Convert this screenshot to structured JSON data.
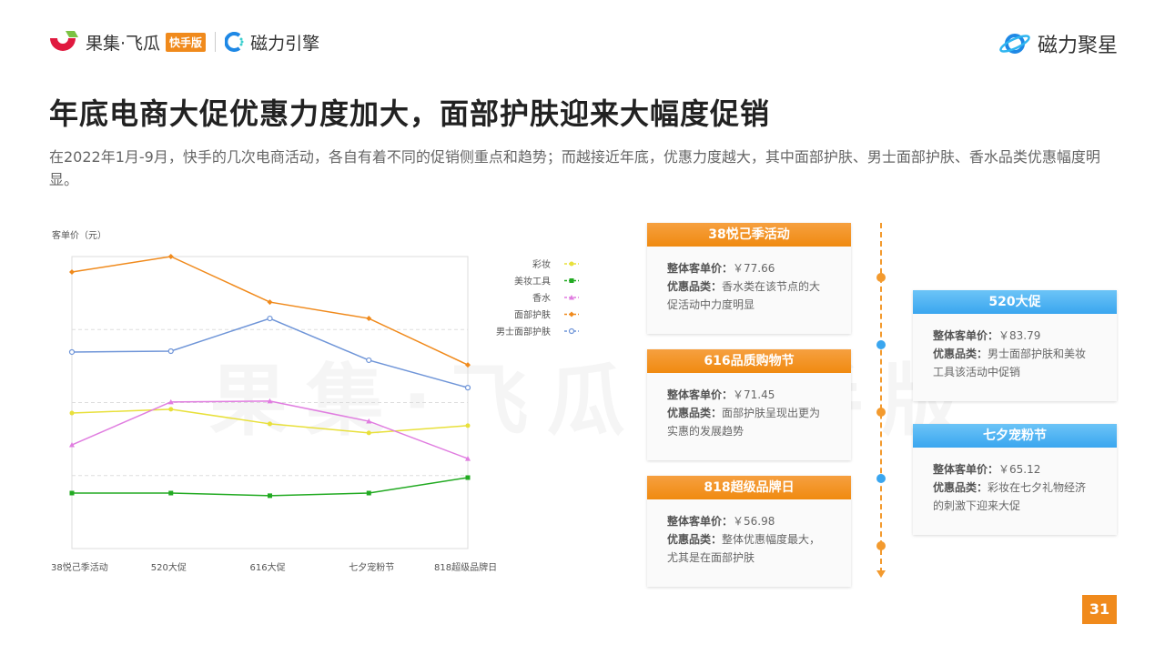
{
  "header": {
    "brand_left": "果集·飞瓜",
    "brand_tag": "快手版",
    "brand_partner": "磁力引擎",
    "brand_right": "磁力聚星"
  },
  "title": "年底电商大促优惠力度加大，面部护肤迎来大幅度促销",
  "subtitle": "在2022年1月-9月，快手的几次电商活动，各自有着不同的促销侧重点和趋势；而越接近年底，优惠力度越大，其中面部护肤、男士面部护肤、香水品类优惠幅度明显。",
  "watermark": "果集·飞瓜 快手版",
  "chart_data": {
    "type": "line",
    "ylabel": "客单价（元）",
    "categories": [
      "38悦己季活动",
      "520大促",
      "616大促",
      "七夕宠粉节",
      "818超级品牌日"
    ],
    "ylim": [
      0,
      100
    ],
    "grid": true,
    "legend_position": "right",
    "series": [
      {
        "name": "彩妆",
        "color": "#e8e03a",
        "marker": "circle",
        "values": [
          46.4,
          47.7,
          42.7,
          39.6,
          42.1
        ]
      },
      {
        "name": "美妆工具",
        "color": "#22aa22",
        "marker": "square",
        "values": [
          19.0,
          19.0,
          18.1,
          19.0,
          24.3
        ]
      },
      {
        "name": "香水",
        "color": "#e07de0",
        "marker": "triangle",
        "values": [
          35.5,
          50.2,
          50.5,
          43.6,
          30.8
        ]
      },
      {
        "name": "面部护肤",
        "color": "#f08a1c",
        "marker": "diamond",
        "values": [
          94.7,
          100,
          84.4,
          78.8,
          62.9
        ]
      },
      {
        "name": "男士面部护肤",
        "color": "#6f95d8",
        "marker": "open-circle",
        "values": [
          67.3,
          67.6,
          78.8,
          64.5,
          55.1
        ]
      }
    ]
  },
  "labels": {
    "price": "整体客单价：",
    "category": "优惠品类："
  },
  "events": [
    {
      "name": "38悦己季活动",
      "price": "￥77.66",
      "desc": "香水类在该节点的大促活动中力度明显"
    },
    {
      "name": "520大促",
      "price": "￥83.79",
      "desc": "男士面部护肤和美妆工具该活动中促销"
    },
    {
      "name": "616品质购物节",
      "price": "￥71.45",
      "desc": "面部护肤呈现出更为实惠的发展趋势"
    },
    {
      "name": "七夕宠粉节",
      "price": "￥65.12",
      "desc": "彩妆在七夕礼物经济的刺激下迎来大促"
    },
    {
      "name": "818超级品牌日",
      "price": "￥56.98",
      "desc": "整体优惠幅度最大，尤其是在面部护肤"
    }
  ],
  "page_number": "31"
}
